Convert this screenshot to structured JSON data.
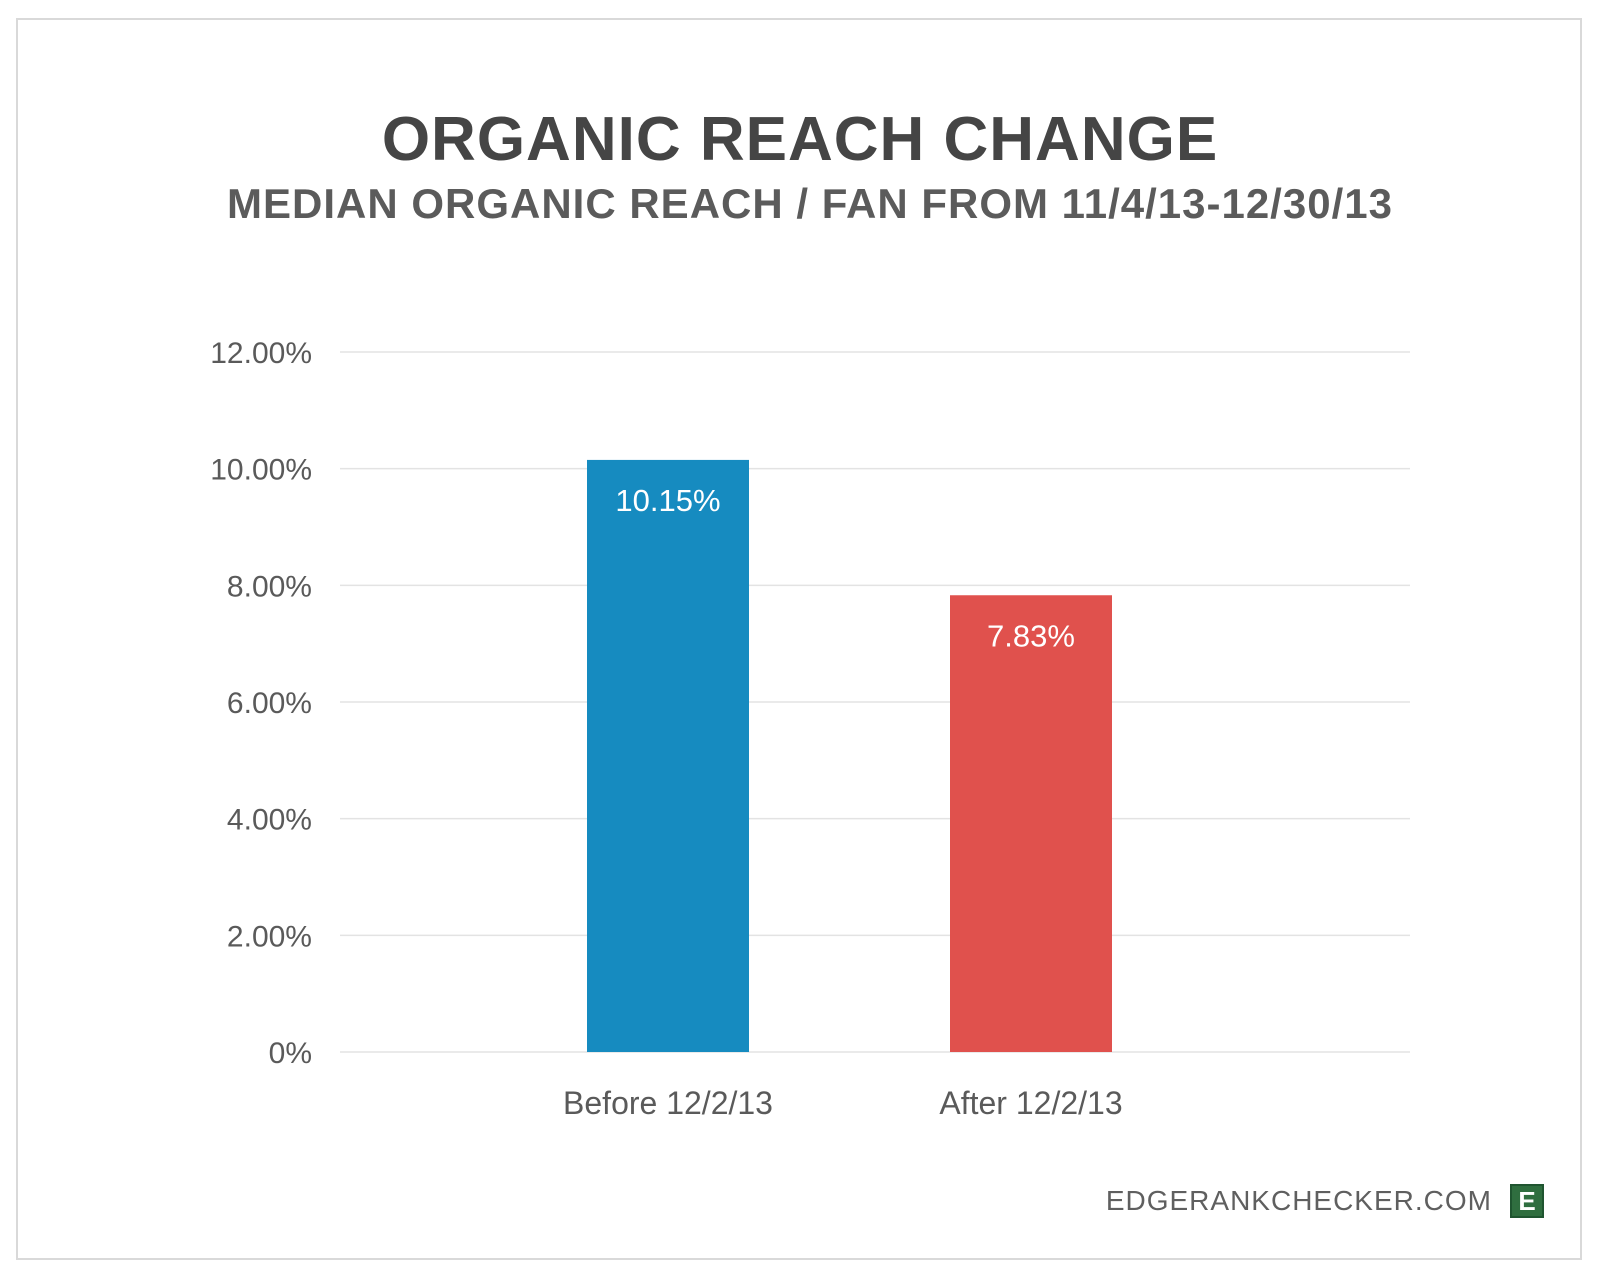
{
  "chart_data": {
    "type": "bar",
    "title": "ORGANIC REACH CHANGE",
    "subtitle": "MEDIAN ORGANIC REACH / FAN FROM 11/4/13-12/30/13",
    "categories": [
      "Before 12/2/13",
      "After 12/2/13"
    ],
    "values": [
      10.15,
      7.83
    ],
    "data_labels": [
      "10.15%",
      "7.83%"
    ],
    "colors": [
      "#168bc0",
      "#e0514d"
    ],
    "ylim": [
      0,
      12
    ],
    "yticks": [
      {
        "value": 0,
        "label": "0%"
      },
      {
        "value": 2,
        "label": "2.00%"
      },
      {
        "value": 4,
        "label": "4.00%"
      },
      {
        "value": 6,
        "label": "6.00%"
      },
      {
        "value": 8,
        "label": "8.00%"
      },
      {
        "value": 10,
        "label": "10.00%"
      },
      {
        "value": 12,
        "label": "12.00%"
      }
    ],
    "grid": true,
    "legend": "none"
  },
  "footer": {
    "brand_text": "EDGERANKCHECKER.COM",
    "logo_letter": "E",
    "logo_color": "#2f6e3f"
  }
}
